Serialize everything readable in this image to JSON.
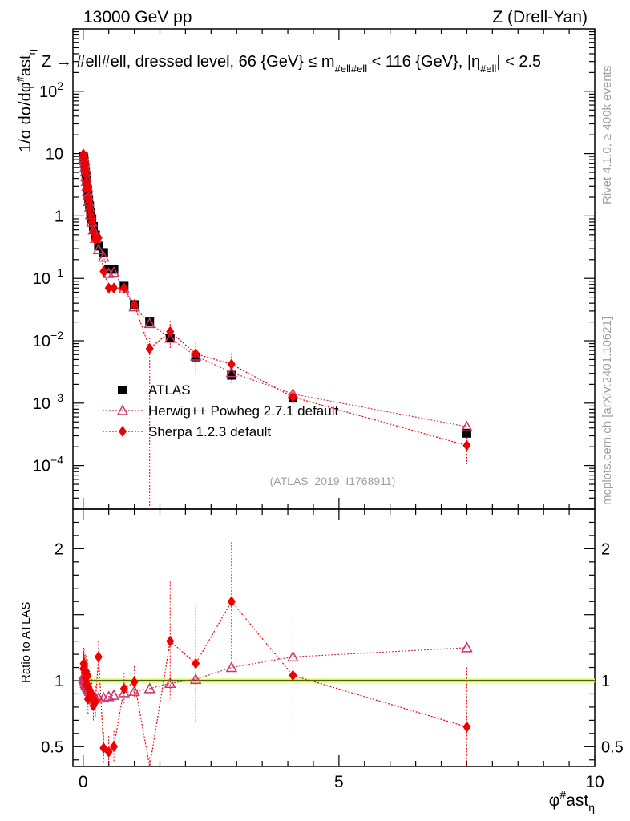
{
  "header": {
    "left": "13000 GeV pp",
    "right": "Z (Drell-Yan)"
  },
  "side_text": {
    "rivet": "Rivet 4.1.0, ≥ 400k events",
    "mcplots": "mcplots.cern.ch [arXiv:2401.10621]"
  },
  "plot_title": {
    "prefix": "Z → #ell#ell, dressed level, 66 {GeV} ≤ m",
    "sub1": "#ell#ell",
    "mid": " < 116 {GeV}, |η",
    "sub2": "#ell",
    "suffix": "| < 2.5"
  },
  "watermark": "(ATLAS_2019_I1768911)",
  "axes": {
    "ylabel_top": "1/σ dσ/dφ",
    "ylabel_top_sup": "#",
    "ylabel_top_tail": "ast",
    "ylabel_top_sub": "η",
    "ylabel_bottom": "Ratio to ATLAS",
    "xlabel": "φ",
    "xlabel_sup": "#",
    "xlabel_tail": "ast",
    "xlabel_sub": "η"
  },
  "legend": {
    "atlas": "ATLAS",
    "herwig": "Herwig++ Powheg 2.7.1 default",
    "sherpa": "Sherpa 1.2.3 default"
  },
  "colors": {
    "atlas": "#000000",
    "herwig": "#cc3366",
    "sherpa": "#ee0000",
    "band": "#ccff33"
  },
  "chart_data": {
    "type": "scatter",
    "title": "Z → #ell#ell, dressed level, 66 {GeV} ≤ m_#ell#ell < 116 {GeV}, |η_#ell| < 2.5",
    "xlabel": "φ*η",
    "ylabel": "1/σ dσ/dφ*η",
    "xlim": [
      -0.2,
      10.0
    ],
    "ylim_log": [
      2e-05,
      1000
    ],
    "ratio_ylim": [
      0.35,
      2.3
    ],
    "x_ticks": [
      0,
      5,
      10
    ],
    "y_ticks": [
      {
        "v": 0.0001,
        "base": "10",
        "exp": "−4"
      },
      {
        "v": 0.001,
        "base": "10",
        "exp": "−3"
      },
      {
        "v": 0.01,
        "base": "10",
        "exp": "−2"
      },
      {
        "v": 0.1,
        "base": "10",
        "exp": "−1"
      },
      {
        "v": 1,
        "base": "1",
        "exp": ""
      },
      {
        "v": 10,
        "base": "10",
        "exp": ""
      },
      {
        "v": 100,
        "base": "10",
        "exp": "2"
      }
    ],
    "ratio_ticks": [
      {
        "v": 0.5,
        "t": "0.5"
      },
      {
        "v": 1,
        "t": "1"
      },
      {
        "v": 2,
        "t": "2"
      }
    ],
    "series": [
      {
        "name": "ATLAS",
        "x": [
          0.004,
          0.012,
          0.02,
          0.028,
          0.036,
          0.045,
          0.055,
          0.065,
          0.075,
          0.085,
          0.095,
          0.108,
          0.125,
          0.145,
          0.17,
          0.2,
          0.24,
          0.3,
          0.4,
          0.5,
          0.6,
          0.8,
          1.0,
          1.3,
          1.7,
          2.2,
          2.9,
          4.1,
          7.5
        ],
        "y": [
          9.0,
          8.4,
          7.6,
          6.8,
          6.0,
          5.2,
          4.4,
          3.7,
          3.1,
          2.6,
          2.2,
          1.8,
          1.45,
          1.15,
          0.9,
          0.68,
          0.5,
          0.33,
          0.26,
          0.14,
          0.14,
          0.075,
          0.038,
          0.02,
          0.011,
          0.0055,
          0.0028,
          0.0012,
          0.00033
        ]
      },
      {
        "name": "Herwig++ Powheg 2.7.1 default",
        "x": [
          0.004,
          0.012,
          0.02,
          0.028,
          0.036,
          0.045,
          0.055,
          0.065,
          0.075,
          0.085,
          0.095,
          0.108,
          0.125,
          0.145,
          0.17,
          0.2,
          0.24,
          0.3,
          0.4,
          0.5,
          0.6,
          0.8,
          1.0,
          1.3,
          1.7,
          2.2,
          2.9,
          4.1,
          7.5
        ],
        "y": [
          9.3,
          8.6,
          7.7,
          6.9,
          6.0,
          5.1,
          4.3,
          3.6,
          3.0,
          2.5,
          2.1,
          1.7,
          1.35,
          1.05,
          0.8,
          0.6,
          0.44,
          0.29,
          0.22,
          0.12,
          0.125,
          0.068,
          0.035,
          0.019,
          0.011,
          0.0057,
          0.0031,
          0.0014,
          0.00042
        ],
        "ratio": [
          1.03,
          1.02,
          1.01,
          1.01,
          1.0,
          0.98,
          0.97,
          0.97,
          0.96,
          0.95,
          0.94,
          0.93,
          0.92,
          0.91,
          0.89,
          0.88,
          0.87,
          0.87,
          0.87,
          0.88,
          0.89,
          0.91,
          0.92,
          0.94,
          0.98,
          1.01,
          1.1,
          1.18,
          1.25
        ]
      },
      {
        "name": "Sherpa 1.2.3 default",
        "x": [
          0.004,
          0.012,
          0.02,
          0.028,
          0.036,
          0.045,
          0.055,
          0.065,
          0.075,
          0.085,
          0.095,
          0.108,
          0.125,
          0.145,
          0.17,
          0.2,
          0.24,
          0.3,
          0.4,
          0.5,
          0.6,
          0.8,
          1.0,
          1.3,
          1.7,
          2.2,
          2.9,
          4.1,
          7.5
        ],
        "y": [
          9.8,
          9.5,
          8.5,
          7.2,
          6.5,
          5.3,
          4.7,
          3.6,
          3.0,
          2.7,
          1.9,
          1.7,
          1.35,
          1.05,
          0.8,
          0.55,
          0.42,
          0.45,
          0.13,
          0.07,
          0.07,
          0.07,
          0.038,
          0.0075,
          0.014,
          0.0062,
          0.0042,
          0.00125,
          0.00021
        ],
        "ratio": [
          1.09,
          1.13,
          1.12,
          1.06,
          1.08,
          1.02,
          1.07,
          0.97,
          0.97,
          1.04,
          0.86,
          0.94,
          0.93,
          0.91,
          0.89,
          0.81,
          0.84,
          1.18,
          0.49,
          0.46,
          0.5,
          0.94,
          0.99,
          0.3,
          1.3,
          1.13,
          1.6,
          1.04,
          0.65
        ]
      }
    ]
  }
}
